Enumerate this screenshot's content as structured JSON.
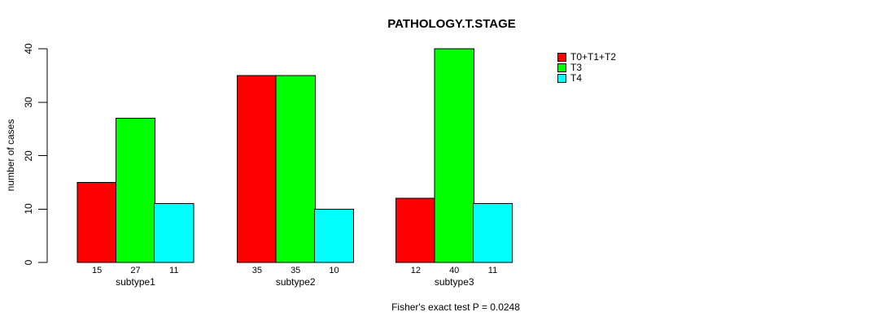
{
  "chart_data": {
    "type": "bar",
    "title": "PATHOLOGY.T.STAGE",
    "ylabel": "number of cases",
    "subtitle": "Fisher's exact test P = 0.0248",
    "categories": [
      "subtype1",
      "subtype2",
      "subtype3"
    ],
    "series": [
      {
        "name": "T0+T1+T2",
        "color": "#ff0000",
        "values": [
          15,
          35,
          12
        ]
      },
      {
        "name": "T3",
        "color": "#00ff00",
        "values": [
          27,
          35,
          40
        ]
      },
      {
        "name": "T4",
        "color": "#00ffff",
        "values": [
          11,
          10,
          11
        ]
      }
    ],
    "value_labels_shown": true,
    "ylim": [
      0,
      40
    ],
    "yticks": [
      0,
      10,
      20,
      30,
      40
    ],
    "legend_position": "top-right",
    "grid": false,
    "bar_border_color": "#000000",
    "axis_color": "#000000"
  }
}
